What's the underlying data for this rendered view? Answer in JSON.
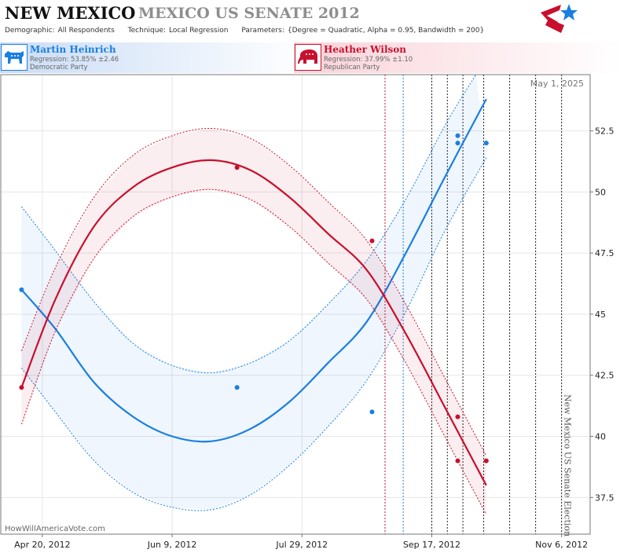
{
  "header": {
    "state": "NEW MEXICO",
    "race": "MEXICO US SENATE 2012",
    "params": [
      {
        "key": "Demographic:",
        "value": "All Respondents"
      },
      {
        "key": "Technique:",
        "value": "Local Regression"
      },
      {
        "key": "Parameters:",
        "value": "{Degree = Quadratic, Alpha = 0.95, Bandwidth = 200}"
      }
    ]
  },
  "candidates": {
    "dem": {
      "name": "Martin Heinrich",
      "regression": "Regression: 53.85% ±2.46",
      "party": "Democratic Party",
      "color": "#1a7fe0"
    },
    "rep": {
      "name": "Heather Wilson",
      "regression": "Regression: 37.99% ±1.10",
      "party": "Republican Party",
      "color": "#c8102e"
    }
  },
  "watermark": "HowWillAmericaVote.com",
  "chart_data": {
    "type": "line",
    "date_label": "May 1, 2025",
    "election_label": "New Mexico US Senate Election",
    "x_ticks": [
      {
        "x": "2012-04-20",
        "label": "Apr 20, 2012"
      },
      {
        "x": "2012-06-09",
        "label": "Jun 9, 2012"
      },
      {
        "x": "2012-07-29",
        "label": "Jul 29, 2012"
      },
      {
        "x": "2012-09-17",
        "label": "Sep 17, 2012"
      },
      {
        "x": "2012-11-06",
        "label": "Nov 6, 2012"
      }
    ],
    "xlim": [
      "2012-04-04",
      "2012-11-17"
    ],
    "y_ticks": [
      37.5,
      40,
      42.5,
      45,
      47.5,
      50,
      52.5
    ],
    "ylim": [
      36.0,
      54.8
    ],
    "grid": true,
    "vlines": [
      {
        "x": "2012-08-30",
        "color": "#c8102e"
      },
      {
        "x": "2012-09-06",
        "color": "#1a7fe0"
      },
      {
        "x": "2012-09-17",
        "color": "#222222"
      },
      {
        "x": "2012-09-23",
        "color": "#222222"
      },
      {
        "x": "2012-09-29",
        "color": "#222222"
      },
      {
        "x": "2012-10-07",
        "color": "#222222"
      },
      {
        "x": "2012-10-17",
        "color": "#222222"
      },
      {
        "x": "2012-10-27",
        "color": "#222222"
      },
      {
        "x": "2012-11-06",
        "color": "#222222"
      }
    ],
    "series": [
      {
        "name": "Martin Heinrich",
        "color": "#1a7fe0",
        "points": [
          {
            "x": "2012-04-12",
            "y": 46.0
          },
          {
            "x": "2012-07-04",
            "y": 42.0
          },
          {
            "x": "2012-08-25",
            "y": 41.0
          },
          {
            "x": "2012-09-27",
            "y": 52.3
          },
          {
            "x": "2012-09-27",
            "y": 52.0
          },
          {
            "x": "2012-10-08",
            "y": 52.0
          }
        ],
        "curve": [
          {
            "x": "2012-04-12",
            "y": 46.0
          },
          {
            "x": "2012-04-25",
            "y": 44.4
          },
          {
            "x": "2012-05-10",
            "y": 42.2
          },
          {
            "x": "2012-05-25",
            "y": 40.8
          },
          {
            "x": "2012-06-09",
            "y": 40.0
          },
          {
            "x": "2012-06-24",
            "y": 39.8
          },
          {
            "x": "2012-07-09",
            "y": 40.3
          },
          {
            "x": "2012-07-24",
            "y": 41.4
          },
          {
            "x": "2012-08-08",
            "y": 43.0
          },
          {
            "x": "2012-08-23",
            "y": 44.7
          },
          {
            "x": "2012-09-07",
            "y": 47.5
          },
          {
            "x": "2012-09-22",
            "y": 50.6
          },
          {
            "x": "2012-10-08",
            "y": 53.8
          }
        ],
        "upper": [
          {
            "x": "2012-04-12",
            "y": 49.4
          },
          {
            "x": "2012-04-25",
            "y": 47.6
          },
          {
            "x": "2012-05-10",
            "y": 45.5
          },
          {
            "x": "2012-05-25",
            "y": 43.8
          },
          {
            "x": "2012-06-09",
            "y": 42.9
          },
          {
            "x": "2012-06-24",
            "y": 42.6
          },
          {
            "x": "2012-07-09",
            "y": 43.0
          },
          {
            "x": "2012-07-24",
            "y": 43.9
          },
          {
            "x": "2012-08-08",
            "y": 45.4
          },
          {
            "x": "2012-08-23",
            "y": 47.2
          },
          {
            "x": "2012-09-07",
            "y": 49.7
          },
          {
            "x": "2012-09-22",
            "y": 52.7
          },
          {
            "x": "2012-10-04",
            "y": 54.8
          }
        ],
        "lower": [
          {
            "x": "2012-04-12",
            "y": 42.8
          },
          {
            "x": "2012-04-25",
            "y": 41.0
          },
          {
            "x": "2012-05-10",
            "y": 39.0
          },
          {
            "x": "2012-05-25",
            "y": 37.7
          },
          {
            "x": "2012-06-09",
            "y": 37.1
          },
          {
            "x": "2012-06-24",
            "y": 37.0
          },
          {
            "x": "2012-07-09",
            "y": 37.6
          },
          {
            "x": "2012-07-24",
            "y": 38.8
          },
          {
            "x": "2012-08-08",
            "y": 40.4
          },
          {
            "x": "2012-08-23",
            "y": 42.3
          },
          {
            "x": "2012-09-07",
            "y": 45.1
          },
          {
            "x": "2012-09-22",
            "y": 48.4
          },
          {
            "x": "2012-10-08",
            "y": 51.4
          }
        ]
      },
      {
        "name": "Heather Wilson",
        "color": "#c8102e",
        "points": [
          {
            "x": "2012-04-12",
            "y": 42.0
          },
          {
            "x": "2012-07-04",
            "y": 51.0
          },
          {
            "x": "2012-08-25",
            "y": 48.0
          },
          {
            "x": "2012-09-27",
            "y": 40.8
          },
          {
            "x": "2012-09-27",
            "y": 39.0
          },
          {
            "x": "2012-10-08",
            "y": 39.0
          }
        ],
        "curve": [
          {
            "x": "2012-04-12",
            "y": 42.0
          },
          {
            "x": "2012-04-25",
            "y": 45.6
          },
          {
            "x": "2012-05-10",
            "y": 48.6
          },
          {
            "x": "2012-05-25",
            "y": 50.2
          },
          {
            "x": "2012-06-09",
            "y": 51.0
          },
          {
            "x": "2012-06-24",
            "y": 51.3
          },
          {
            "x": "2012-07-09",
            "y": 50.9
          },
          {
            "x": "2012-07-24",
            "y": 49.8
          },
          {
            "x": "2012-08-08",
            "y": 48.3
          },
          {
            "x": "2012-08-23",
            "y": 46.8
          },
          {
            "x": "2012-09-07",
            "y": 44.2
          },
          {
            "x": "2012-09-22",
            "y": 41.2
          },
          {
            "x": "2012-10-08",
            "y": 38.0
          }
        ],
        "upper": [
          {
            "x": "2012-04-12",
            "y": 43.5
          },
          {
            "x": "2012-04-25",
            "y": 46.9
          },
          {
            "x": "2012-05-10",
            "y": 49.8
          },
          {
            "x": "2012-05-25",
            "y": 51.5
          },
          {
            "x": "2012-06-09",
            "y": 52.3
          },
          {
            "x": "2012-06-24",
            "y": 52.6
          },
          {
            "x": "2012-07-09",
            "y": 52.2
          },
          {
            "x": "2012-07-24",
            "y": 51.1
          },
          {
            "x": "2012-08-08",
            "y": 49.6
          },
          {
            "x": "2012-08-23",
            "y": 48.0
          },
          {
            "x": "2012-09-07",
            "y": 45.4
          },
          {
            "x": "2012-09-22",
            "y": 42.4
          },
          {
            "x": "2012-10-08",
            "y": 39.2
          }
        ],
        "lower": [
          {
            "x": "2012-04-12",
            "y": 40.5
          },
          {
            "x": "2012-04-25",
            "y": 44.3
          },
          {
            "x": "2012-05-10",
            "y": 47.3
          },
          {
            "x": "2012-05-25",
            "y": 49.0
          },
          {
            "x": "2012-06-09",
            "y": 49.8
          },
          {
            "x": "2012-06-24",
            "y": 50.1
          },
          {
            "x": "2012-07-09",
            "y": 49.7
          },
          {
            "x": "2012-07-24",
            "y": 48.6
          },
          {
            "x": "2012-08-08",
            "y": 47.1
          },
          {
            "x": "2012-08-23",
            "y": 45.6
          },
          {
            "x": "2012-09-07",
            "y": 43.0
          },
          {
            "x": "2012-09-22",
            "y": 40.0
          },
          {
            "x": "2012-10-08",
            "y": 36.8
          }
        ]
      }
    ]
  }
}
